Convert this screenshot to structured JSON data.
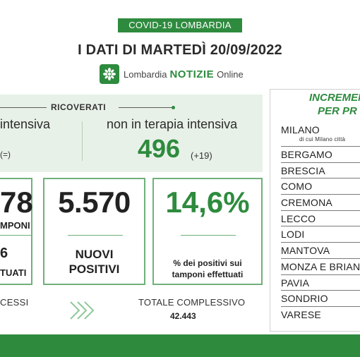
{
  "header": {
    "tag": "COVID-19 LOMBARDIA",
    "title": "I DATI DI MARTEDÌ 20/09/2022",
    "brand": {
      "prefix": "Lombardia",
      "notizie": "NOTIZIE",
      "suffix": "Online"
    }
  },
  "ricoverati": {
    "title": "RICOVERATI",
    "terapia_intensiva": {
      "label": "intensiva",
      "value": "",
      "delta": "(=)"
    },
    "non_terapia_intensiva": {
      "label": "non in terapia intensiva",
      "value": "496",
      "delta": "(+19)"
    }
  },
  "cards": {
    "tamponi": {
      "value": "78",
      "label": "MPONI",
      "sub_value": "6",
      "sub_label": "TUATI"
    },
    "nuovi_positivi": {
      "value": "5.570",
      "label_line1": "NUOVI",
      "label_line2": "POSITIVI"
    },
    "percentuale": {
      "value": "14,6%",
      "label_line1": "% dei positivi sui",
      "label_line2": "tamponi effettuati"
    }
  },
  "bottom": {
    "decessi_label": "CESSI",
    "totale_label": "TOTALE COMPLESSIVO",
    "totale_value": "42.443"
  },
  "incremento": {
    "title_line1": "INCREMEN",
    "title_line2": "PER PR",
    "provinces": [
      {
        "name": "MILANO",
        "sub": "di cui Milano città"
      },
      {
        "name": "BERGAMO"
      },
      {
        "name": "BRESCIA"
      },
      {
        "name": "COMO"
      },
      {
        "name": "CREMONA"
      },
      {
        "name": "LECCO"
      },
      {
        "name": "LODI"
      },
      {
        "name": "MANTOVA"
      },
      {
        "name": "MONZA E BRIAN"
      },
      {
        "name": "PAVIA"
      },
      {
        "name": "SONDRIO"
      },
      {
        "name": "VARESE"
      }
    ]
  },
  "colors": {
    "brand_green": "#2e8b3e",
    "panel_green": "#e8f1e8",
    "card_border": "#6fb07a"
  },
  "icons": [
    "lombardia-logo-icon",
    "chevrons-right-icon"
  ]
}
